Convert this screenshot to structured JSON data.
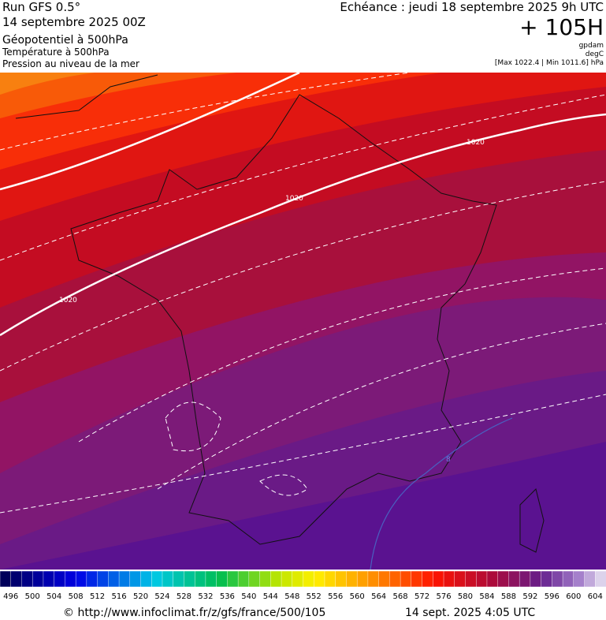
{
  "header": {
    "run": "Run GFS 0.5°",
    "date": "14 septembre 2025 00Z",
    "field1": "Géopotentiel à 500hPa",
    "field2": "Température à 500hPa",
    "field3": "Pression au niveau de la mer",
    "valid": "Echéance : jeudi 18 septembre 2025 9h UTC",
    "lead": "+ 105H",
    "unit1": "gpdam",
    "unit2": "degC",
    "range": "[Max 1022.4 | Min 1011.6] hPa"
  },
  "map": {
    "isobar_labels": [
      "1020",
      "1020",
      "1020",
      "8"
    ]
  },
  "colorbar": {
    "labels": [
      496,
      500,
      504,
      508,
      512,
      516,
      520,
      524,
      528,
      532,
      536,
      540,
      544,
      548,
      552,
      556,
      560,
      564,
      568,
      572,
      576,
      580,
      584,
      588,
      592,
      596,
      600,
      604
    ]
  },
  "footer": {
    "url": "© http://www.infoclimat.fr/z/gfs/france/500/105",
    "generated": "14 sept. 2025  4:05 UTC"
  }
}
